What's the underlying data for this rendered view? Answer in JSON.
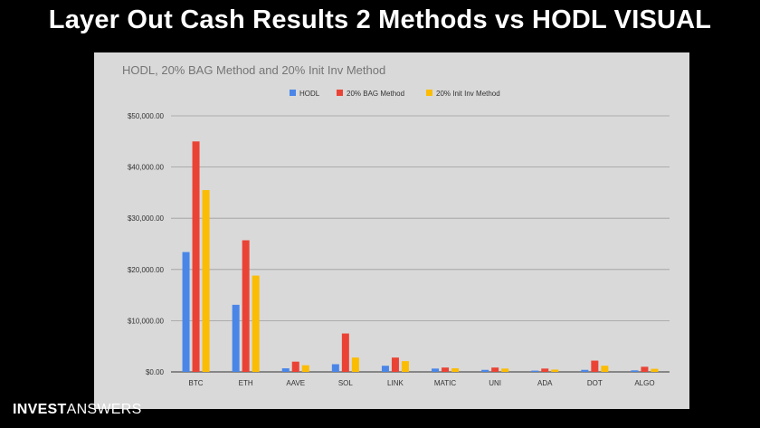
{
  "slide": {
    "title": "Layer Out Cash Results 2 Methods vs HODL VISUAL"
  },
  "brand": {
    "part1": "INVEST",
    "part2": "ANSWERS"
  },
  "colors": {
    "HODL": "#4a86e8",
    "20% BAG Method": "#ea4335",
    "20% Init Inv Method": "#fbbc04",
    "panel_bg": "#d9d9d9",
    "grid": "#9e9e9e"
  },
  "chart_data": {
    "type": "bar",
    "title": "HODL, 20% BAG Method and 20% Init Inv Method",
    "xlabel": "",
    "ylabel": "",
    "ylim": [
      0,
      50000
    ],
    "yticks": [
      "$0.00",
      "$10,000.00",
      "$20,000.00",
      "$30,000.00",
      "$40,000.00",
      "$50,000.00"
    ],
    "ytick_values": [
      0,
      10000,
      20000,
      30000,
      40000,
      50000
    ],
    "grid": true,
    "legend_position": "top",
    "categories": [
      "BTC",
      "ETH",
      "AAVE",
      "SOL",
      "LINK",
      "MATIC",
      "UNI",
      "ADA",
      "DOT",
      "ALGO"
    ],
    "series": [
      {
        "name": "HODL",
        "values": [
          23400,
          13100,
          700,
          1500,
          1200,
          650,
          400,
          250,
          400,
          300
        ]
      },
      {
        "name": "20% BAG Method",
        "values": [
          45000,
          25700,
          2000,
          7500,
          2800,
          850,
          850,
          650,
          2200,
          1000
        ]
      },
      {
        "name": "20% Init Inv Method",
        "values": [
          35500,
          18800,
          1300,
          2800,
          2100,
          700,
          650,
          450,
          1200,
          600
        ]
      }
    ]
  }
}
